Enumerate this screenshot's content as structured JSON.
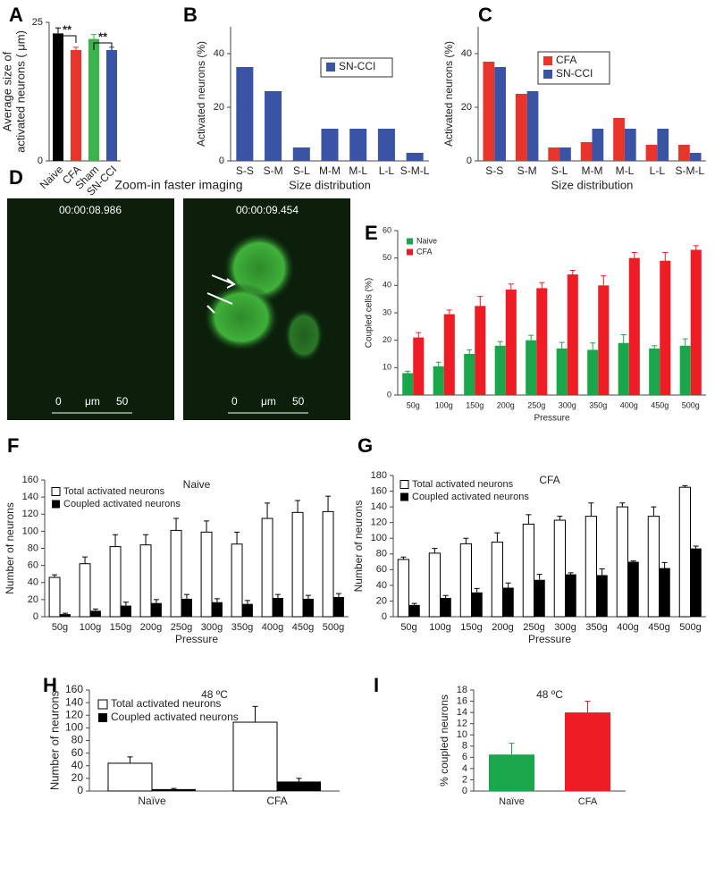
{
  "chart_data": [
    {
      "type": "bar",
      "panel_label": "A",
      "ylabel": [
        "Average size of",
        "activated neurons ( μm)"
      ],
      "categories": [
        "Naive",
        "CFA",
        "Sham",
        "SN-CCI"
      ],
      "values": [
        23,
        20,
        22,
        20
      ],
      "errors": [
        1,
        0.5,
        0.8,
        0.5
      ],
      "colors": [
        "#000000",
        "#e8342b",
        "#3cb44b",
        "#3a53a4"
      ],
      "ylim": [
        0,
        25
      ],
      "yticks": [
        0,
        25
      ],
      "annotations": [
        "**",
        "**"
      ]
    },
    {
      "type": "bar",
      "panel_label": "B",
      "ylabel": "Activated neurons (%)",
      "xlabel": "Size distribution",
      "categories": [
        "S-S",
        "S-M",
        "S-L",
        "M-M",
        "M-L",
        "L-L",
        "S-M-L"
      ],
      "series": [
        {
          "name": "SN-CCI",
          "color": "#3a53a4",
          "values": [
            35,
            26,
            5,
            12,
            12,
            12,
            3
          ]
        }
      ],
      "ylim": [
        0,
        50
      ],
      "yticks": [
        0,
        20,
        40
      ]
    },
    {
      "type": "bar",
      "panel_label": "C",
      "ylabel": "Activated neurons (%)",
      "xlabel": "Size distribution",
      "categories": [
        "S-S",
        "S-M",
        "S-L",
        "M-M",
        "M-L",
        "L-L",
        "S-M-L"
      ],
      "series": [
        {
          "name": "CFA",
          "color": "#e8342b",
          "values": [
            37,
            25,
            5,
            7,
            16,
            6,
            6
          ]
        },
        {
          "name": "SN-CCI",
          "color": "#3a53a4",
          "values": [
            35,
            26,
            5,
            12,
            12,
            12,
            3
          ]
        }
      ],
      "ylim": [
        0,
        50
      ],
      "yticks": [
        0,
        20,
        40
      ]
    },
    {
      "type": "bar",
      "panel_label": "E",
      "ylabel": "Coupled cells (%)",
      "xlabel": "Pressure",
      "categories": [
        "50g",
        "100g",
        "150g",
        "200g",
        "250g",
        "300g",
        "350g",
        "400g",
        "450g",
        "500g"
      ],
      "series": [
        {
          "name": "Naive",
          "color": "#1aa64a",
          "values": [
            8,
            10.5,
            15,
            18,
            20,
            17,
            16.5,
            19,
            17,
            18
          ],
          "errors": [
            0.7,
            1.5,
            1.5,
            1.5,
            1.8,
            2.2,
            2.5,
            3,
            1,
            2.5
          ]
        },
        {
          "name": "CFA",
          "color": "#ee1c24",
          "values": [
            21,
            29.5,
            32.5,
            38.5,
            39,
            44,
            40,
            50,
            49,
            53
          ],
          "errors": [
            1.8,
            1.5,
            3.5,
            2,
            2,
            1.5,
            3.5,
            2,
            3,
            1.5
          ]
        }
      ],
      "ylim": [
        0,
        60
      ],
      "yticks": [
        0,
        10,
        20,
        30,
        40,
        50,
        60
      ]
    },
    {
      "type": "bar",
      "panel_label": "F",
      "title": "Naive",
      "ylabel": "Number of neurons",
      "xlabel": "Pressure",
      "categories": [
        "50g",
        "100g",
        "150g",
        "200g",
        "250g",
        "300g",
        "350g",
        "400g",
        "450g",
        "500g"
      ],
      "series": [
        {
          "name": "Total activated neurons",
          "color": "#ffffff",
          "values": [
            46,
            62,
            82,
            84,
            101,
            99,
            85,
            115,
            122,
            123
          ],
          "errors": [
            3,
            8,
            14,
            12,
            14,
            13,
            14,
            18,
            14,
            18
          ]
        },
        {
          "name": "Coupled activated neurons",
          "color": "#000000",
          "values": [
            3,
            7,
            13,
            16,
            21,
            17,
            15,
            22,
            21,
            23
          ],
          "errors": [
            1,
            2,
            4,
            4,
            5,
            4,
            4,
            4,
            4,
            4
          ]
        }
      ],
      "ylim": [
        0,
        160
      ],
      "yticks": [
        0,
        20,
        40,
        60,
        80,
        100,
        120,
        140,
        160
      ]
    },
    {
      "type": "bar",
      "panel_label": "G",
      "title": "CFA",
      "ylabel": "Number of neurons",
      "xlabel": "Pressure",
      "categories": [
        "50g",
        "100g",
        "150g",
        "200g",
        "250g",
        "300g",
        "350g",
        "400g",
        "450g",
        "500g"
      ],
      "series": [
        {
          "name": "Total activated neurons",
          "color": "#ffffff",
          "values": [
            73,
            81,
            93,
            95,
            118,
            123,
            128,
            140,
            128,
            165
          ],
          "errors": [
            3,
            6,
            7,
            12,
            12,
            5,
            17,
            5,
            12,
            2
          ]
        },
        {
          "name": "Coupled activated neurons",
          "color": "#000000",
          "values": [
            15,
            24,
            31,
            37,
            47,
            54,
            53,
            70,
            62,
            87
          ],
          "errors": [
            2,
            3,
            5,
            6,
            7,
            2,
            8,
            1,
            7,
            3
          ]
        }
      ],
      "ylim": [
        0,
        180
      ],
      "yticks": [
        0,
        20,
        40,
        60,
        80,
        100,
        120,
        140,
        160,
        180
      ]
    },
    {
      "type": "bar",
      "panel_label": "H",
      "title": "48 ºC",
      "ylabel": "Number of neurons",
      "categories": [
        "Naïve",
        "CFA"
      ],
      "series": [
        {
          "name": "Total activated neurons",
          "color": "#ffffff",
          "values": [
            44,
            109
          ],
          "errors": [
            10,
            25
          ]
        },
        {
          "name": "Coupled activated neurons",
          "color": "#000000",
          "values": [
            3,
            15
          ],
          "errors": [
            1,
            5
          ]
        }
      ],
      "ylim": [
        0,
        160
      ],
      "yticks": [
        0,
        20,
        40,
        60,
        80,
        100,
        120,
        140,
        160
      ]
    },
    {
      "type": "bar",
      "panel_label": "I",
      "title": "48 ºC",
      "ylabel": "% coupled neurons",
      "categories": [
        "Naïve",
        "CFA"
      ],
      "values": [
        6.5,
        14
      ],
      "errors": [
        2,
        2
      ],
      "colors": [
        "#1aa64a",
        "#ee1c24"
      ],
      "ylim": [
        0,
        18
      ],
      "yticks": [
        0,
        2,
        4,
        6,
        8,
        10,
        12,
        14,
        16,
        18
      ]
    }
  ],
  "image_panel": {
    "panel_label": "D",
    "title": "Zoom-in faster imaging",
    "times": [
      "00:00:08.986",
      "00:00:09.454"
    ],
    "scale": [
      "0",
      "μm",
      "50"
    ]
  }
}
